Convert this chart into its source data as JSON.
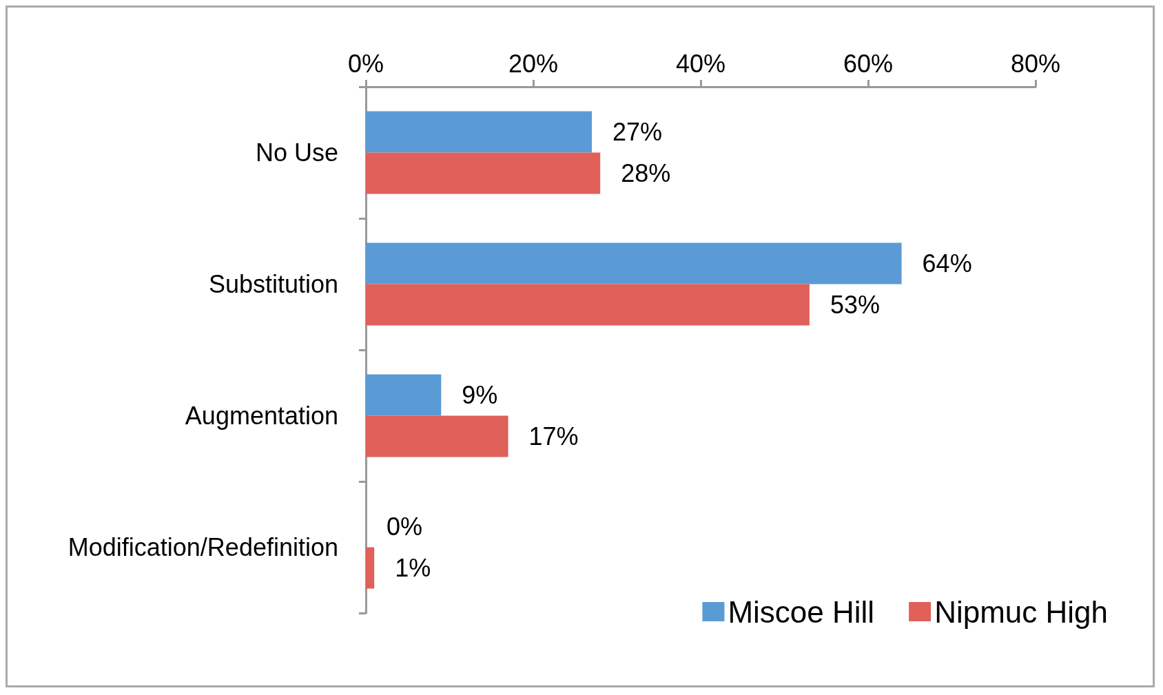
{
  "chart_data": {
    "type": "bar",
    "orientation": "horizontal",
    "categories": [
      "No Use",
      "Substitution",
      "Augmentation",
      "Modification/Redefinition"
    ],
    "series": [
      {
        "name": "Miscoe Hill",
        "color": "#5b9bd5",
        "values": [
          27,
          64,
          9,
          0
        ],
        "value_labels": [
          "27%",
          "64%",
          "9%",
          "0%"
        ]
      },
      {
        "name": "Nipmuc High",
        "color": "#e0605a",
        "values": [
          28,
          53,
          17,
          1
        ],
        "value_labels": [
          "28%",
          "53%",
          "17%",
          "1%"
        ]
      }
    ],
    "xlim": [
      0,
      80
    ],
    "xticks": [
      {
        "value": 0,
        "label": "0%"
      },
      {
        "value": 20,
        "label": "20%"
      },
      {
        "value": 40,
        "label": "40%"
      },
      {
        "value": 60,
        "label": "60%"
      },
      {
        "value": 80,
        "label": "80%"
      }
    ],
    "grid": false,
    "legend": "bottom right"
  }
}
